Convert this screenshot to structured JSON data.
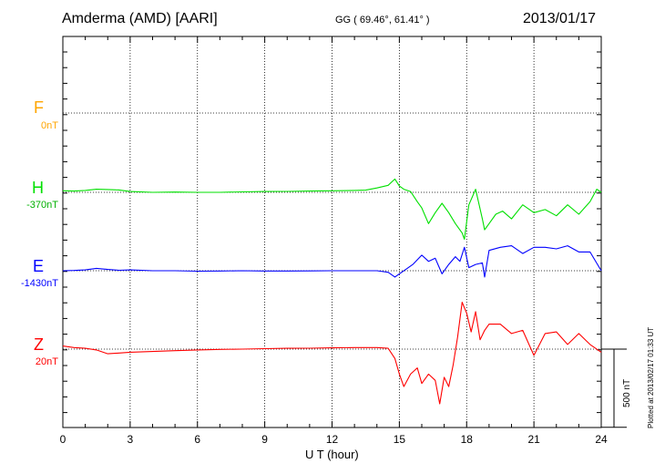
{
  "header": {
    "station": "Amderma (AMD)  [AARI]",
    "coords": "GG ( 69.46°,  61.41° )",
    "date": "2013/01/17"
  },
  "plotted_note": "Plotted at 2013/02/17 01:33 UT",
  "scale_label": "500 nT",
  "chart_data": {
    "type": "line",
    "title": "Amderma (AMD)  [AARI]",
    "xlabel": "U T (hour)",
    "ylabel": "",
    "xlim": [
      0,
      24
    ],
    "xticks": [
      0,
      3,
      6,
      9,
      12,
      15,
      18,
      21,
      24
    ],
    "grid": true,
    "scale_bar_nT": 500,
    "series": [
      {
        "name": "F",
        "baseline_label": "0nT",
        "color": "#ffa500",
        "x": [],
        "y": []
      },
      {
        "name": "H",
        "baseline_label": "-370nT",
        "color": "#00e000",
        "x": [
          0,
          0.5,
          1.0,
          1.5,
          2.0,
          2.5,
          3.0,
          4.0,
          5.0,
          6.0,
          7.0,
          8.0,
          9.0,
          10.0,
          11.0,
          12.0,
          13.0,
          13.5,
          14.0,
          14.5,
          14.8,
          15.0,
          15.2,
          15.5,
          15.8,
          16.0,
          16.3,
          16.6,
          16.9,
          17.2,
          17.5,
          17.8,
          17.9,
          18.1,
          18.4,
          18.7,
          18.8,
          19.0,
          19.3,
          19.6,
          20.0,
          20.5,
          21.0,
          21.5,
          22.0,
          22.5,
          23.0,
          23.5,
          23.8,
          24.0
        ],
        "y": [
          10,
          8,
          12,
          20,
          18,
          15,
          5,
          0,
          2,
          0,
          0,
          3,
          5,
          6,
          8,
          10,
          12,
          14,
          28,
          45,
          85,
          40,
          20,
          5,
          -60,
          -100,
          -200,
          -130,
          -70,
          -130,
          -200,
          -260,
          -300,
          -80,
          20,
          -170,
          -240,
          -200,
          -140,
          -120,
          -170,
          -80,
          -130,
          -110,
          -150,
          -80,
          -140,
          -60,
          20,
          0
        ]
      },
      {
        "name": "E",
        "baseline_label": "-1430nT",
        "color": "#0000ff",
        "x": [
          0,
          0.5,
          1.0,
          1.5,
          2.0,
          2.5,
          3.0,
          4.0,
          5.0,
          6.0,
          7.0,
          8.0,
          9.0,
          10.0,
          11.0,
          12.0,
          13.0,
          14.0,
          14.5,
          14.8,
          15.0,
          15.3,
          15.6,
          16.0,
          16.3,
          16.6,
          16.9,
          17.2,
          17.5,
          17.7,
          17.9,
          18.1,
          18.4,
          18.7,
          18.8,
          19.0,
          19.5,
          20.0,
          20.5,
          21.0,
          21.5,
          22.0,
          22.5,
          23.0,
          23.5,
          24.0
        ],
        "y": [
          0,
          2,
          5,
          15,
          8,
          3,
          5,
          0,
          0,
          -3,
          -2,
          0,
          -2,
          -2,
          -1,
          0,
          0,
          0,
          -10,
          -40,
          -20,
          10,
          40,
          100,
          60,
          80,
          -20,
          40,
          90,
          60,
          150,
          20,
          40,
          50,
          -40,
          130,
          150,
          160,
          110,
          150,
          150,
          140,
          160,
          120,
          120,
          0
        ]
      },
      {
        "name": "Z",
        "baseline_label": "20nT",
        "color": "#ff0000",
        "x": [
          0,
          0.5,
          1.0,
          1.5,
          2.0,
          2.5,
          3.0,
          4.0,
          5.0,
          6.0,
          7.0,
          8.0,
          9.0,
          10.0,
          11.0,
          12.0,
          13.0,
          14.0,
          14.5,
          14.8,
          15.0,
          15.2,
          15.5,
          15.8,
          16.0,
          16.3,
          16.6,
          16.8,
          17.0,
          17.2,
          17.4,
          17.6,
          17.8,
          18.0,
          18.2,
          18.4,
          18.6,
          18.8,
          19.0,
          19.5,
          20.0,
          20.5,
          21.0,
          21.5,
          22.0,
          22.5,
          23.0,
          23.5,
          24.0
        ],
        "y": [
          20,
          10,
          5,
          -5,
          -30,
          -25,
          -20,
          -15,
          -10,
          -5,
          -2,
          0,
          3,
          5,
          6,
          8,
          10,
          10,
          5,
          -60,
          -160,
          -240,
          -160,
          -120,
          -220,
          -160,
          -200,
          -350,
          -180,
          -240,
          -100,
          80,
          300,
          230,
          110,
          240,
          60,
          120,
          160,
          160,
          100,
          120,
          -40,
          100,
          110,
          30,
          100,
          30,
          -20
        ]
      }
    ]
  }
}
